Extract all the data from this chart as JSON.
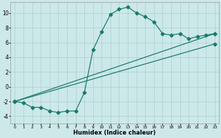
{
  "xlabel": "Humidex (Indice chaleur)",
  "bg_color": "#cce8e8",
  "line_color": "#1a7a6a",
  "grid_color": "#aacfcf",
  "xlim": [
    -0.5,
    23.5
  ],
  "ylim": [
    -5,
    11.5
  ],
  "xticks": [
    0,
    1,
    2,
    3,
    4,
    5,
    6,
    7,
    8,
    9,
    10,
    11,
    12,
    13,
    14,
    15,
    16,
    17,
    18,
    19,
    20,
    21,
    22,
    23
  ],
  "yticks": [
    -4,
    -2,
    0,
    2,
    4,
    6,
    8,
    10
  ],
  "curve_x": [
    0,
    1,
    2,
    3,
    4,
    5,
    6,
    7,
    8,
    9,
    10,
    11,
    12,
    13,
    14,
    15,
    16,
    17,
    18,
    19,
    20,
    21,
    22,
    23
  ],
  "curve_y": [
    -2,
    -2.2,
    -2.8,
    -2.8,
    -3.3,
    -3.5,
    -3.3,
    -3.3,
    -0.8,
    5,
    7.5,
    9.8,
    10.5,
    10.8,
    10,
    9.5,
    8.8,
    7.2,
    7.0,
    7.2,
    6.5,
    6.8,
    7.0,
    7.2
  ],
  "line2_x": [
    0,
    23
  ],
  "line2_y": [
    -2,
    7.2
  ],
  "line3_x": [
    0,
    23
  ],
  "line3_y": [
    -2,
    5.8
  ],
  "marker": "D",
  "marker_size": 2.5,
  "linewidth": 0.9
}
